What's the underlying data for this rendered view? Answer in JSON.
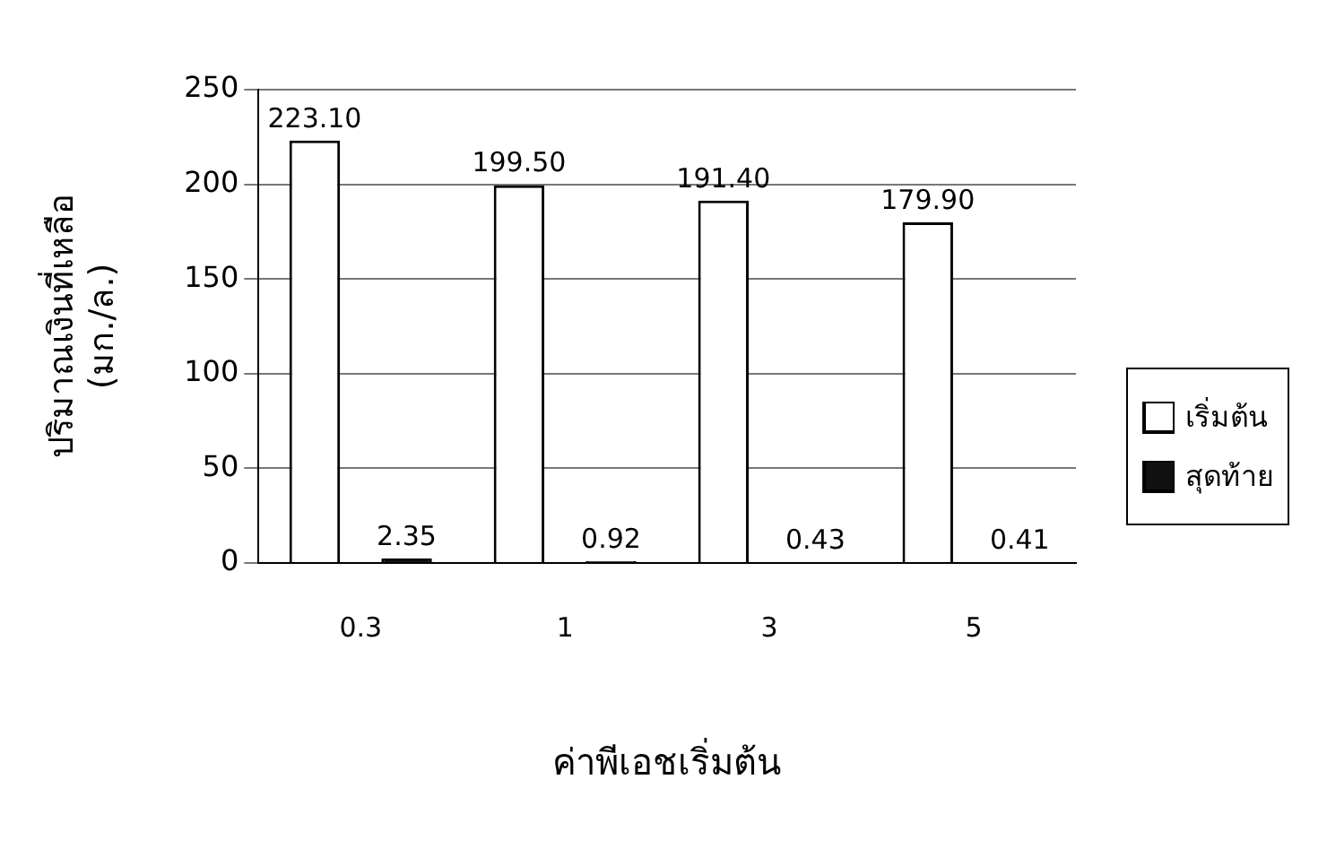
{
  "chart_data": {
    "type": "bar",
    "xlabel": "ค่าพีเอชเริ่มต้น",
    "ylabel": "ปริมาณเงินที่เหลือ (มก./ล.)",
    "categories": [
      "0.3",
      "1",
      "3",
      "5"
    ],
    "series": [
      {
        "name": "เริ่มต้น",
        "color": "#ffffff",
        "values": [
          223.1,
          199.5,
          191.4,
          179.9
        ],
        "value_labels": [
          "223.10",
          "199.50",
          "191.40",
          "179.90"
        ]
      },
      {
        "name": "สุดท้าย",
        "color": "#111111",
        "values": [
          2.35,
          0.92,
          0.43,
          0.41
        ],
        "value_labels": [
          "2.35",
          "0.92",
          "0.43",
          "0.41"
        ]
      }
    ],
    "ylim": [
      0,
      250
    ],
    "yticks": [
      0,
      50,
      100,
      150,
      200,
      250
    ],
    "grid": "y",
    "legend": "right"
  }
}
